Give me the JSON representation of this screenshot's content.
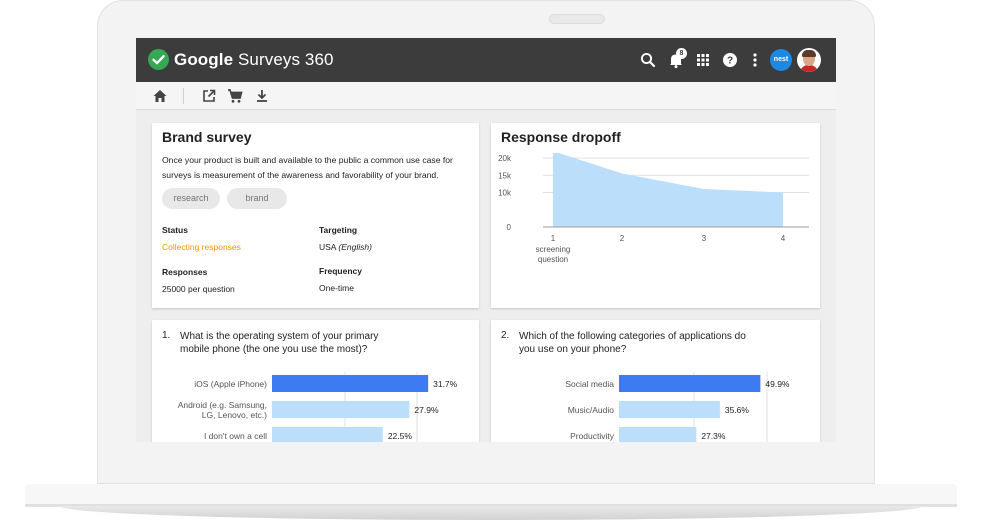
{
  "app": {
    "name_bold": "Google",
    "name_rest": " Surveys 360",
    "notification_count": "8",
    "brand_avatar_text": "nest",
    "icons": [
      "check-logo-icon",
      "search-icon",
      "bell-icon",
      "apps-grid-icon",
      "help-icon",
      "more-vert-icon"
    ]
  },
  "toolbar": {
    "icons": [
      "home-icon",
      "open-in-new-icon",
      "cart-icon",
      "download-icon"
    ]
  },
  "brand_survey": {
    "title": "Brand survey",
    "description_line1": "Once your product is built and available to the public a common use case for",
    "description_line2": "surveys is measurement of the awareness and favorability of your brand.",
    "tags": [
      "research",
      "brand"
    ],
    "status_label": "Status",
    "status_value": "Collecting responses",
    "targeting_label": "Targeting",
    "targeting_country": "USA ",
    "targeting_language": "(English)",
    "responses_label": "Responses",
    "responses_value": "25000 per question",
    "frequency_label": "Frequency",
    "frequency_value": "One-time",
    "status_color": "#f29900"
  },
  "response_dropoff": {
    "title": "Response dropoff",
    "chart_data": {
      "type": "area",
      "x": [
        "1",
        "2",
        "3",
        "4"
      ],
      "x_sublabels": [
        "screening",
        "question",
        "",
        ""
      ],
      "values": [
        22000,
        15500,
        11000,
        10000
      ],
      "ylim": [
        0,
        20000
      ],
      "yticks": [
        "0",
        "10k",
        "15k",
        "20k"
      ],
      "fill_color": "#bbdefb",
      "grid": true
    }
  },
  "questions": [
    {
      "number": "1.",
      "text_line1": "What is the operating system of your primary",
      "text_line2": "mobile phone (the one you use the most)?",
      "chart_data": {
        "type": "bar",
        "categories": [
          [
            "iOS (Apple iPhone)"
          ],
          [
            "Android (e.g. Samsung,",
            "LG, Lenovo, etc.)"
          ],
          [
            "I don't own a cell"
          ]
        ],
        "values": [
          31.7,
          27.9,
          22.5
        ],
        "value_labels": [
          "31.7%",
          "27.9%",
          "22.5%"
        ],
        "colors": [
          "#3d7bf2",
          "#bbdefb",
          "#bbdefb"
        ],
        "xlim": [
          0,
          40
        ]
      }
    },
    {
      "number": "2.",
      "text_line1": "Which of the following categories of applications do",
      "text_line2": "you use on your phone?",
      "chart_data": {
        "type": "bar",
        "categories": [
          [
            "Social media"
          ],
          [
            "Music/Audio"
          ],
          [
            "Productivity"
          ]
        ],
        "values": [
          49.9,
          35.6,
          27.3
        ],
        "value_labels": [
          "49.9%",
          "35.6%",
          "27.3%"
        ],
        "colors": [
          "#3d7bf2",
          "#bbdefb",
          "#bbdefb"
        ],
        "xlim": [
          0,
          60
        ]
      }
    }
  ]
}
